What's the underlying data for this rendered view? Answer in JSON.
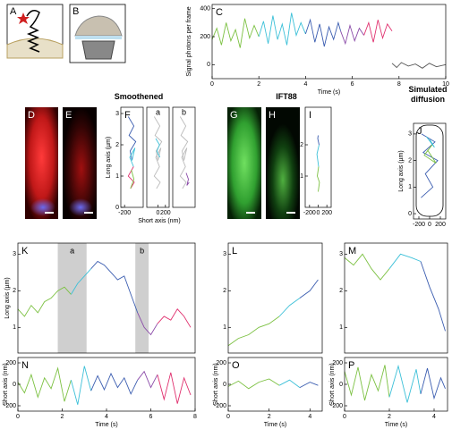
{
  "illustrations": {
    "A": "A",
    "B": "B"
  },
  "group_titles": [
    "Smoothened",
    "IFT88",
    "Simulated diffusion"
  ],
  "images": {
    "D": "D",
    "E": "E",
    "G": "G",
    "H": "H"
  },
  "chart_data": [
    {
      "type": "line",
      "label": "C",
      "xlabel": "Time (s)",
      "ylabel": "Signal photons per frame",
      "xlim": [
        0,
        10
      ],
      "ylim": [
        -100,
        430
      ],
      "xticks": [
        0,
        2,
        4,
        6,
        8,
        10
      ],
      "yticks": [
        0,
        200,
        400
      ],
      "series": [
        {
          "color": "#7cc142",
          "x": [
            0,
            0.2,
            0.4,
            0.6,
            0.8,
            1,
            1.2,
            1.4,
            1.6,
            1.8,
            2
          ],
          "values": [
            180,
            260,
            140,
            300,
            170,
            250,
            120,
            330,
            190,
            280,
            200
          ]
        },
        {
          "color": "#3cc0d8",
          "x": [
            2,
            2.2,
            2.4,
            2.6,
            2.8,
            3,
            3.2,
            3.4,
            3.6,
            3.8,
            4
          ],
          "values": [
            200,
            310,
            150,
            350,
            180,
            290,
            140,
            370,
            210,
            300,
            220
          ]
        },
        {
          "color": "#3b5db0",
          "x": [
            4,
            4.2,
            4.4,
            4.6,
            4.8,
            5,
            5.2,
            5.4,
            5.5
          ],
          "values": [
            220,
            320,
            160,
            290,
            130,
            270,
            180,
            300,
            240
          ]
        },
        {
          "color": "#8a4aa8",
          "x": [
            5.5,
            5.7,
            5.9,
            6.1,
            6.3,
            6.5
          ],
          "values": [
            240,
            150,
            280,
            170,
            260,
            210
          ]
        },
        {
          "color": "#e0306e",
          "x": [
            6.5,
            6.7,
            6.9,
            7.1,
            7.3,
            7.5,
            7.7
          ],
          "values": [
            210,
            300,
            160,
            320,
            190,
            290,
            240
          ]
        },
        {
          "color": "#555555",
          "x": [
            7.7,
            7.9,
            8.1,
            8.4,
            8.7,
            9,
            9.3,
            9.6,
            10
          ],
          "values": [
            10,
            -20,
            15,
            -10,
            5,
            -25,
            10,
            -15,
            0
          ]
        }
      ]
    },
    {
      "type": "line",
      "label": "F",
      "xlabel": "Short axis (nm)",
      "ylabel": "Long axis (µm)",
      "xlim": [
        -300,
        300
      ],
      "ylim": [
        0,
        3.2
      ],
      "xticks": [
        -200
      ],
      "yticks": [
        0,
        1,
        2,
        3
      ],
      "series": [
        {
          "color": "#3b5db0",
          "x": [
            -100,
            50,
            -80,
            100,
            -50,
            0
          ],
          "values": [
            2.9,
            2.6,
            2.3,
            2.1,
            1.8,
            1.5
          ]
        },
        {
          "color": "#3cc0d8",
          "x": [
            0,
            80,
            -60,
            40
          ],
          "values": [
            1.5,
            1.9,
            1.6,
            1.3
          ]
        },
        {
          "color": "#e0306e",
          "x": [
            40,
            -100,
            60,
            -40
          ],
          "values": [
            1.3,
            1.0,
            0.8,
            0.6
          ]
        },
        {
          "color": "#7cc142",
          "x": [
            -40,
            50,
            -20
          ],
          "values": [
            0.6,
            0.9,
            1.2
          ]
        }
      ]
    },
    {
      "type": "line",
      "label": "a",
      "xlim": [
        -300,
        300
      ],
      "ylim": [
        0,
        3.2
      ],
      "xticks": [
        0,
        200
      ],
      "series": [
        {
          "color": "#bbbbbb",
          "x": [
            -100,
            50,
            -80,
            100,
            -50,
            0,
            80,
            -60,
            40,
            -100,
            60,
            -40
          ],
          "values": [
            2.9,
            2.6,
            2.3,
            2.1,
            1.8,
            1.5,
            1.9,
            1.6,
            1.3,
            1.0,
            0.8,
            0.6
          ]
        },
        {
          "color": "#3cc0d8",
          "x": [
            -60,
            40,
            -30,
            50
          ],
          "values": [
            2.2,
            2.0,
            1.8,
            1.6
          ]
        }
      ]
    },
    {
      "type": "line",
      "label": "b",
      "xlim": [
        -300,
        300
      ],
      "ylim": [
        0,
        3.2
      ],
      "series": [
        {
          "color": "#bbbbbb",
          "x": [
            -100,
            50,
            -80,
            100,
            -50,
            0,
            80,
            -60,
            40,
            -100,
            60,
            -40
          ],
          "values": [
            2.9,
            2.6,
            2.3,
            2.1,
            1.8,
            1.5,
            1.9,
            1.6,
            1.3,
            1.0,
            0.8,
            0.6
          ]
        },
        {
          "color": "#8a4aa8",
          "x": [
            60,
            120,
            80,
            140
          ],
          "values": [
            1.1,
            0.9,
            0.7,
            0.8
          ]
        }
      ]
    },
    {
      "type": "line",
      "label": "I",
      "xlim": [
        -300,
        300
      ],
      "ylim": [
        0,
        3.2
      ],
      "xticks": [
        -200,
        0,
        200
      ],
      "yticks": [
        1,
        2
      ],
      "series": [
        {
          "color": "#7cc142",
          "x": [
            0,
            30,
            -20,
            10
          ],
          "values": [
            0.5,
            0.8,
            1.0,
            1.3
          ]
        },
        {
          "color": "#3cc0d8",
          "x": [
            10,
            -30,
            20
          ],
          "values": [
            1.3,
            1.7,
            2.0
          ]
        },
        {
          "color": "#3b5db0",
          "x": [
            20,
            -10,
            0
          ],
          "values": [
            2.0,
            2.2,
            2.3
          ]
        }
      ]
    },
    {
      "type": "line",
      "label": "J",
      "ylabel": "Long axis (µm)",
      "xlim": [
        -300,
        300
      ],
      "ylim": [
        -0.2,
        3.4
      ],
      "xticks": [
        -200,
        0,
        200
      ],
      "yticks": [
        0,
        1,
        2,
        3
      ],
      "series": [
        {
          "color": "#3b5db0",
          "x": [
            -150,
            100,
            -120,
            150,
            -80,
            60,
            -160
          ],
          "values": [
            3.0,
            2.7,
            2.3,
            2.0,
            1.5,
            1.0,
            0.6
          ]
        },
        {
          "color": "#7cc142",
          "x": [
            50,
            -100,
            120,
            -40
          ],
          "values": [
            2.6,
            2.2,
            1.9,
            2.4
          ]
        },
        {
          "color": "#3cc0d8",
          "x": [
            -60,
            90,
            0
          ],
          "values": [
            2.9,
            2.5,
            2.8
          ]
        }
      ]
    },
    {
      "type": "line",
      "label": "K",
      "ylabel": "Long axis (µm)",
      "xlim": [
        0,
        8
      ],
      "ylim": [
        0.3,
        3.3
      ],
      "yticks": [
        1,
        2,
        3
      ],
      "bands": [
        {
          "label": "a",
          "x": [
            1.8,
            3.1
          ]
        },
        {
          "label": "b",
          "x": [
            5.3,
            5.9
          ]
        }
      ],
      "series": [
        {
          "color": "#7cc142",
          "x": [
            0,
            0.3,
            0.6,
            0.9,
            1.2,
            1.5,
            1.8,
            2.1,
            2.4
          ],
          "values": [
            1.5,
            1.3,
            1.6,
            1.4,
            1.7,
            1.8,
            2.0,
            2.1,
            1.9
          ]
        },
        {
          "color": "#3cc0d8",
          "x": [
            2.4,
            2.7,
            3.0,
            3.3
          ],
          "values": [
            1.9,
            2.2,
            2.4,
            2.6
          ]
        },
        {
          "color": "#3b5db0",
          "x": [
            3.3,
            3.6,
            3.9,
            4.2,
            4.5,
            4.8,
            5.1,
            5.4
          ],
          "values": [
            2.6,
            2.8,
            2.7,
            2.5,
            2.3,
            2.4,
            1.9,
            1.4
          ]
        },
        {
          "color": "#8a4aa8",
          "x": [
            5.4,
            5.7,
            6.0,
            6.3
          ],
          "values": [
            1.4,
            1.0,
            0.8,
            1.1
          ]
        },
        {
          "color": "#e0306e",
          "x": [
            6.3,
            6.6,
            6.9,
            7.2,
            7.5,
            7.8
          ],
          "values": [
            1.1,
            1.3,
            1.2,
            1.5,
            1.3,
            1.0
          ]
        }
      ]
    },
    {
      "type": "line",
      "label": "N",
      "xlabel": "Time (s)",
      "ylabel": "Short axis (nm)",
      "xlim": [
        0,
        8
      ],
      "ylim": [
        -250,
        250
      ],
      "xticks": [
        0,
        2,
        4,
        6,
        8
      ],
      "yticks": [
        -200,
        0,
        200
      ],
      "series": [
        {
          "color": "#7cc142",
          "x": [
            0,
            0.3,
            0.6,
            0.9,
            1.2,
            1.5,
            1.8,
            2.1,
            2.4
          ],
          "values": [
            20,
            -80,
            90,
            -120,
            60,
            -40,
            150,
            -160,
            40
          ]
        },
        {
          "color": "#3cc0d8",
          "x": [
            2.4,
            2.7,
            3.0,
            3.3
          ],
          "values": [
            40,
            -190,
            170,
            -60
          ]
        },
        {
          "color": "#3b5db0",
          "x": [
            3.3,
            3.6,
            3.9,
            4.2,
            4.5,
            4.8,
            5.1,
            5.4
          ],
          "values": [
            -60,
            80,
            -50,
            100,
            -30,
            60,
            -90,
            40
          ]
        },
        {
          "color": "#8a4aa8",
          "x": [
            5.4,
            5.7,
            6.0,
            6.3
          ],
          "values": [
            40,
            120,
            -30,
            90
          ]
        },
        {
          "color": "#e0306e",
          "x": [
            6.3,
            6.6,
            6.9,
            7.2,
            7.5,
            7.8
          ],
          "values": [
            90,
            -140,
            110,
            -180,
            60,
            -100
          ]
        }
      ]
    },
    {
      "type": "line",
      "label": "L",
      "xlim": [
        0,
        4.6
      ],
      "ylim": [
        0.3,
        3.3
      ],
      "yticks": [
        1,
        2,
        3
      ],
      "series": [
        {
          "color": "#7cc142",
          "x": [
            0,
            0.5,
            1,
            1.5,
            2,
            2.5
          ],
          "values": [
            0.5,
            0.7,
            0.8,
            1.0,
            1.1,
            1.3
          ]
        },
        {
          "color": "#3cc0d8",
          "x": [
            2.5,
            3,
            3.5
          ],
          "values": [
            1.3,
            1.6,
            1.8
          ]
        },
        {
          "color": "#3b5db0",
          "x": [
            3.5,
            4,
            4.4
          ],
          "values": [
            1.8,
            2.0,
            2.3
          ]
        }
      ]
    },
    {
      "type": "line",
      "label": "O",
      "xlabel": "Time (s)",
      "ylabel": "Short axis (nm)",
      "xlim": [
        0,
        4.6
      ],
      "ylim": [
        -250,
        250
      ],
      "xticks": [
        0,
        2,
        4
      ],
      "yticks": [
        -200,
        0,
        200
      ],
      "series": [
        {
          "color": "#7cc142",
          "x": [
            0,
            0.5,
            1,
            1.5,
            2,
            2.5
          ],
          "values": [
            -20,
            30,
            -40,
            20,
            50,
            -10
          ]
        },
        {
          "color": "#3cc0d8",
          "x": [
            2.5,
            3,
            3.5
          ],
          "values": [
            -10,
            40,
            -30
          ]
        },
        {
          "color": "#3b5db0",
          "x": [
            3.5,
            4,
            4.4
          ],
          "values": [
            -30,
            20,
            -10
          ]
        }
      ]
    },
    {
      "type": "line",
      "label": "M",
      "xlim": [
        0,
        4.6
      ],
      "ylim": [
        0.3,
        3.3
      ],
      "yticks": [
        1,
        2,
        3
      ],
      "series": [
        {
          "color": "#7cc142",
          "x": [
            0,
            0.4,
            0.8,
            1.2,
            1.6,
            2.0
          ],
          "values": [
            2.9,
            2.7,
            3.0,
            2.6,
            2.3,
            2.6
          ]
        },
        {
          "color": "#3cc0d8",
          "x": [
            2.0,
            2.5,
            3.0,
            3.4
          ],
          "values": [
            2.6,
            3.0,
            2.9,
            2.8
          ]
        },
        {
          "color": "#3b5db0",
          "x": [
            3.4,
            3.8,
            4.2,
            4.5
          ],
          "values": [
            2.8,
            2.1,
            1.5,
            0.9
          ]
        }
      ]
    },
    {
      "type": "line",
      "label": "P",
      "xlabel": "Time (s)",
      "ylabel": "Short axis (nm)",
      "xlim": [
        0,
        4.6
      ],
      "ylim": [
        -250,
        250
      ],
      "xticks": [
        0,
        2,
        4
      ],
      "yticks": [
        -200,
        0,
        200
      ],
      "series": [
        {
          "color": "#7cc142",
          "x": [
            0,
            0.3,
            0.6,
            0.9,
            1.2,
            1.5,
            1.8,
            2.0
          ],
          "values": [
            120,
            -100,
            160,
            -150,
            90,
            -60,
            180,
            -120
          ]
        },
        {
          "color": "#3cc0d8",
          "x": [
            2.0,
            2.4,
            2.8,
            3.2,
            3.4
          ],
          "values": [
            -120,
            170,
            -170,
            140,
            -90
          ]
        },
        {
          "color": "#3b5db0",
          "x": [
            3.4,
            3.7,
            4.0,
            4.3,
            4.5
          ],
          "values": [
            -90,
            150,
            -130,
            60,
            -40
          ]
        }
      ]
    }
  ]
}
